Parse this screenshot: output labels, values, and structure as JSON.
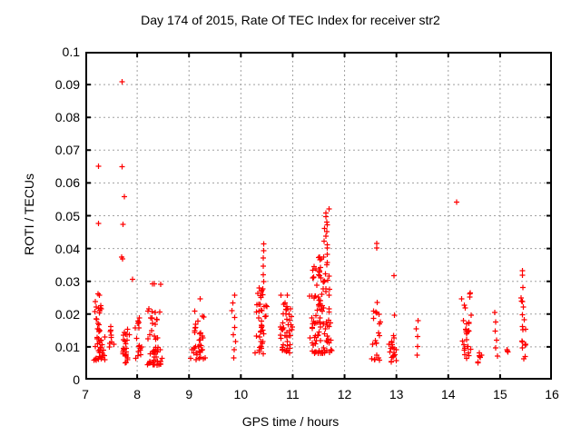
{
  "chart_data": {
    "type": "scatter",
    "title": "Day 174 of 2015, Rate Of TEC Index for receiver str2",
    "xlabel": "GPS time / hours",
    "ylabel": "ROTI / TECUs",
    "xlim": [
      7,
      16
    ],
    "ylim": [
      0,
      0.1
    ],
    "x_tick_values": [
      7,
      8,
      9,
      10,
      11,
      12,
      13,
      14,
      15,
      16
    ],
    "x_tick_labels": [
      "7",
      "8",
      "9",
      "10",
      "11",
      "12",
      "13",
      "14",
      "15",
      "16"
    ],
    "y_tick_values": [
      0,
      0.01,
      0.02,
      0.03,
      0.04,
      0.05,
      0.06,
      0.07,
      0.08,
      0.09,
      0.1
    ],
    "y_tick_labels": [
      "0",
      "0.01",
      "0.02",
      "0.03",
      "0.04",
      "0.05",
      "0.06",
      "0.07",
      "0.08",
      "0.09",
      "0.1"
    ],
    "grid": true,
    "legend": false,
    "marker": {
      "shape": "plus",
      "color": "#ff0000",
      "size": 7
    },
    "grid_color": "#a0a0a0",
    "axis_color": "#000000",
    "background_color": "#ffffff",
    "outlier_points": [
      [
        7.25,
        0.0651
      ],
      [
        7.25,
        0.0477
      ],
      [
        7.71,
        0.0908
      ],
      [
        7.71,
        0.065
      ],
      [
        7.73,
        0.0473
      ],
      [
        7.75,
        0.0558
      ],
      [
        7.7,
        0.0374
      ],
      [
        7.72,
        0.0368
      ],
      [
        7.91,
        0.0306
      ],
      [
        12.62,
        0.0416
      ],
      [
        12.62,
        0.0401
      ],
      [
        12.95,
        0.0317
      ],
      [
        12.96,
        0.0196
      ],
      [
        14.16,
        0.0542
      ],
      [
        15.43,
        0.0332
      ],
      [
        15.43,
        0.0319
      ],
      [
        15.44,
        0.0281
      ]
    ],
    "clusters": [
      {
        "x": [
          7.14,
          7.38
        ],
        "y": [
          0.006,
          0.0265
        ],
        "n": 50,
        "bias": 1.7
      },
      {
        "x": [
          7.44,
          7.56
        ],
        "y": [
          0.01,
          0.017
        ],
        "n": 9,
        "bias": 1.2
      },
      {
        "x": [
          7.68,
          7.86
        ],
        "y": [
          0.005,
          0.017
        ],
        "n": 26,
        "bias": 1.4
      },
      {
        "x": [
          7.95,
          8.1
        ],
        "y": [
          0.006,
          0.019
        ],
        "n": 16,
        "bias": 1.4
      },
      {
        "x": [
          8.18,
          8.5
        ],
        "y": [
          0.0045,
          0.0295
        ],
        "n": 55,
        "bias": 1.8
      },
      {
        "x": [
          9.02,
          9.35
        ],
        "y": [
          0.006,
          0.026
        ],
        "n": 38,
        "bias": 1.9
      },
      {
        "x": [
          9.82,
          9.92
        ],
        "y": [
          0.007,
          0.0255
        ],
        "n": 9,
        "bias": 1.0,
        "even": true
      },
      {
        "x": [
          10.26,
          10.52
        ],
        "y": [
          0.0075,
          0.028
        ],
        "n": 42,
        "bias": 1.8
      },
      {
        "x": [
          10.42,
          10.47
        ],
        "y": [
          0.03,
          0.0417
        ],
        "n": 6,
        "bias": 1.0,
        "even": true
      },
      {
        "x": [
          10.74,
          11.02
        ],
        "y": [
          0.008,
          0.0265
        ],
        "n": 48,
        "bias": 1.5
      },
      {
        "x": [
          11.3,
          11.78
        ],
        "y": [
          0.008,
          0.0375
        ],
        "n": 110,
        "bias": 1.5
      },
      {
        "x": [
          11.58,
          11.73
        ],
        "y": [
          0.0385,
          0.0522
        ],
        "n": 12,
        "bias": 1.0,
        "even": true
      },
      {
        "x": [
          12.5,
          12.72
        ],
        "y": [
          0.006,
          0.0235
        ],
        "n": 20,
        "bias": 1.7
      },
      {
        "x": [
          12.84,
          13.02
        ],
        "y": [
          0.005,
          0.0135
        ],
        "n": 20,
        "bias": 1.3
      },
      {
        "x": [
          13.38,
          13.46
        ],
        "y": [
          0.007,
          0.0185
        ],
        "n": 5,
        "bias": 1.0,
        "even": true
      },
      {
        "x": [
          14.24,
          14.46
        ],
        "y": [
          0.0065,
          0.0278
        ],
        "n": 30,
        "bias": 1.5
      },
      {
        "x": [
          14.55,
          14.66
        ],
        "y": [
          0.0045,
          0.0085
        ],
        "n": 7,
        "bias": 1.0
      },
      {
        "x": [
          14.86,
          14.96
        ],
        "y": [
          0.007,
          0.0205
        ],
        "n": 6,
        "bias": 1.0,
        "even": true
      },
      {
        "x": [
          15.1,
          15.18
        ],
        "y": [
          0.0075,
          0.0105
        ],
        "n": 3,
        "bias": 1.0
      },
      {
        "x": [
          15.38,
          15.52
        ],
        "y": [
          0.006,
          0.0255
        ],
        "n": 16,
        "bias": 1.2
      }
    ]
  }
}
